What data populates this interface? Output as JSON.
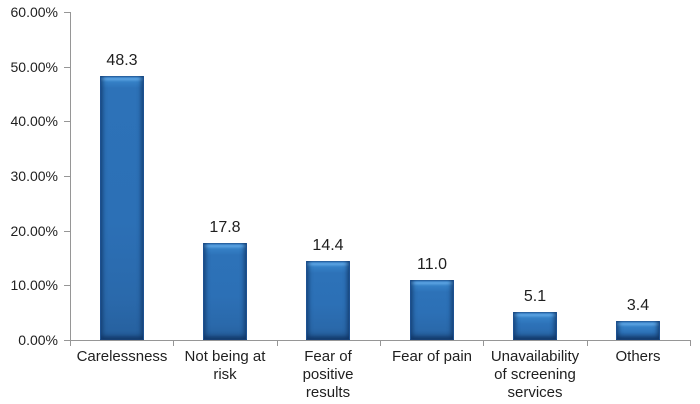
{
  "chart_data": {
    "type": "bar",
    "title": "",
    "xlabel": "",
    "ylabel": "",
    "categories": [
      "Carelessness",
      "Not being at risk",
      "Fear of positive results",
      "Fear of pain",
      "Unavailability of screening services",
      "Others"
    ],
    "category_display_lines": [
      [
        "Carelessness"
      ],
      [
        "Not being at",
        "risk"
      ],
      [
        "Fear of",
        "positive",
        "results"
      ],
      [
        "Fear of pain"
      ],
      [
        "Unavailability",
        "of screening",
        "services"
      ],
      [
        "Others"
      ]
    ],
    "values": [
      48.3,
      17.8,
      14.4,
      11.0,
      5.1,
      3.4
    ],
    "value_labels": [
      "48.3",
      "17.8",
      "14.4",
      "11.0",
      "5.1",
      "3.4"
    ],
    "ylim": [
      0,
      60
    ],
    "y_tick_step": 10,
    "y_tick_labels": [
      "0.00%",
      "10.00%",
      "20.00%",
      "30.00%",
      "40.00%",
      "50.00%",
      "60.00%"
    ],
    "grid": false,
    "legend": "none",
    "units": "percent"
  },
  "colors": {
    "bar_fill": "#2c70b6",
    "bar_edge_dark": "#1d5191",
    "bar_highlight": "#5ba3e2",
    "axis": "#969696",
    "text": "#1f1f1f",
    "background": "#ffffff"
  }
}
